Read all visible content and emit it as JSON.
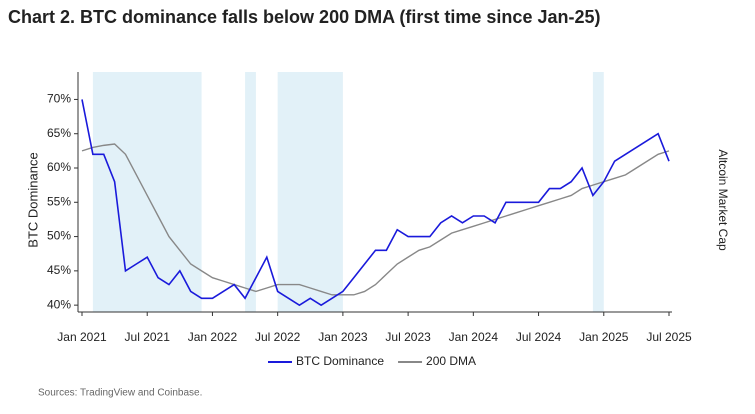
{
  "chart_data": {
    "type": "line",
    "title": "Chart 2. BTC dominance falls below 200 DMA (first time since Jan-25)",
    "y_label": "BTC Dominance",
    "y2_label": "Altcoin Market Cap",
    "source": "Sources: TradingView and Coinbase.",
    "x": [
      "2021-01",
      "2021-02",
      "2021-03",
      "2021-04",
      "2021-05",
      "2021-06",
      "2021-07",
      "2021-08",
      "2021-09",
      "2021-10",
      "2021-11",
      "2021-12",
      "2022-01",
      "2022-02",
      "2022-03",
      "2022-04",
      "2022-05",
      "2022-06",
      "2022-07",
      "2022-08",
      "2022-09",
      "2022-10",
      "2022-11",
      "2022-12",
      "2023-01",
      "2023-02",
      "2023-03",
      "2023-04",
      "2023-05",
      "2023-06",
      "2023-07",
      "2023-08",
      "2023-09",
      "2023-10",
      "2023-11",
      "2023-12",
      "2024-01",
      "2024-02",
      "2024-03",
      "2024-04",
      "2024-05",
      "2024-06",
      "2024-07",
      "2024-08",
      "2024-09",
      "2024-10",
      "2024-11",
      "2024-12",
      "2025-01",
      "2025-02",
      "2025-03",
      "2025-04",
      "2025-05",
      "2025-06",
      "2025-07"
    ],
    "series": [
      {
        "name": "BTC Dominance",
        "color": "#1a1adb",
        "values": [
          70,
          62,
          62,
          58,
          45,
          46,
          47,
          44,
          43,
          45,
          42,
          41,
          41,
          42,
          43,
          41,
          44,
          47,
          42,
          41,
          40,
          41,
          40,
          41,
          42,
          44,
          46,
          48,
          48,
          51,
          50,
          50,
          50,
          52,
          53,
          52,
          53,
          53,
          52,
          55,
          55,
          55,
          55,
          57,
          57,
          58,
          60,
          56,
          58,
          61,
          62,
          63,
          64,
          65,
          61
        ]
      },
      {
        "name": "200 DMA",
        "color": "#888888",
        "values": [
          62.5,
          63,
          63.3,
          63.5,
          62,
          59,
          56,
          53,
          50,
          48,
          46,
          45,
          44,
          43.5,
          43,
          42.5,
          42,
          42.5,
          43,
          43,
          43,
          42.5,
          42,
          41.5,
          41.5,
          41.5,
          42,
          43,
          44.5,
          46,
          47,
          48,
          48.5,
          49.5,
          50.5,
          51,
          51.5,
          52,
          52.5,
          53,
          53.5,
          54,
          54.5,
          55,
          55.5,
          56,
          57,
          57.5,
          58,
          58.5,
          59,
          60,
          61,
          62,
          62.5
        ]
      }
    ],
    "shaded_ranges": [
      [
        "2021-02",
        "2021-12"
      ],
      [
        "2022-04",
        "2022-05"
      ],
      [
        "2022-07",
        "2023-01"
      ],
      [
        "2024-12",
        "2025-01"
      ]
    ],
    "shade_color": "#e2f1f8",
    "xlim": [
      "2021-01",
      "2025-07"
    ],
    "xticks": [
      {
        "value": "2021-01",
        "label": "Jan 2021"
      },
      {
        "value": "2021-07",
        "label": "Jul 2021"
      },
      {
        "value": "2022-01",
        "label": "Jan 2022"
      },
      {
        "value": "2022-07",
        "label": "Jul 2022"
      },
      {
        "value": "2023-01",
        "label": "Jan 2023"
      },
      {
        "value": "2023-07",
        "label": "Jul 2023"
      },
      {
        "value": "2024-01",
        "label": "Jan 2024"
      },
      {
        "value": "2024-07",
        "label": "Jul 2024"
      },
      {
        "value": "2025-01",
        "label": "Jan 2025"
      },
      {
        "value": "2025-07",
        "label": "Jul 2025"
      }
    ],
    "ylim": [
      39,
      74
    ],
    "yticks": [
      {
        "value": 40,
        "label": "40%"
      },
      {
        "value": 45,
        "label": "45%"
      },
      {
        "value": 50,
        "label": "50%"
      },
      {
        "value": 55,
        "label": "55%"
      },
      {
        "value": 60,
        "label": "60%"
      },
      {
        "value": 65,
        "label": "65%"
      },
      {
        "value": 70,
        "label": "70%"
      }
    ],
    "legend": "bottom"
  }
}
